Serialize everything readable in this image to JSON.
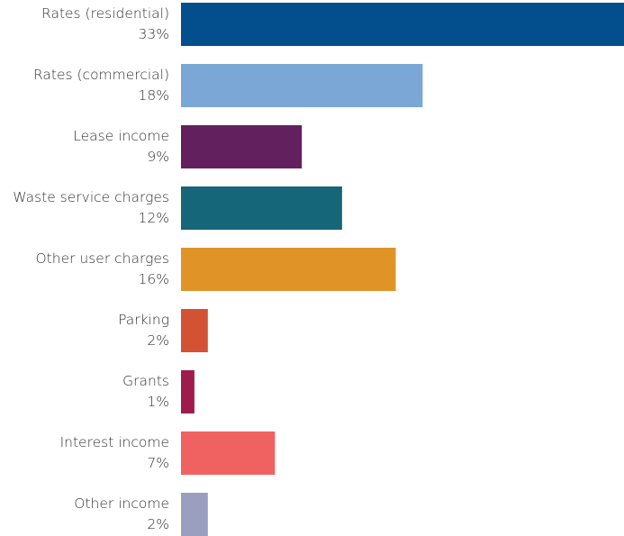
{
  "chart_data": {
    "type": "bar",
    "orientation": "horizontal",
    "categories": [
      "Rates (residential)",
      "Rates (commercial)",
      "Lease income",
      "Waste service charges",
      "Other user charges",
      "Parking",
      "Grants",
      "Interest income",
      "Other income"
    ],
    "values": [
      33,
      18,
      9,
      12,
      16,
      2,
      1,
      7,
      2
    ],
    "value_labels": [
      "33%",
      "18%",
      "9%",
      "12%",
      "16%",
      "2%",
      "1%",
      "7%",
      "2%"
    ],
    "colors": [
      "#034e8c",
      "#7aa7d5",
      "#63205e",
      "#146678",
      "#e09428",
      "#d45234",
      "#9e1c4b",
      "#f06262",
      "#9b9fbf"
    ],
    "title": "",
    "xlabel": "",
    "ylabel": "",
    "xlim": [
      0,
      33
    ],
    "grid": false,
    "legend": "none"
  }
}
